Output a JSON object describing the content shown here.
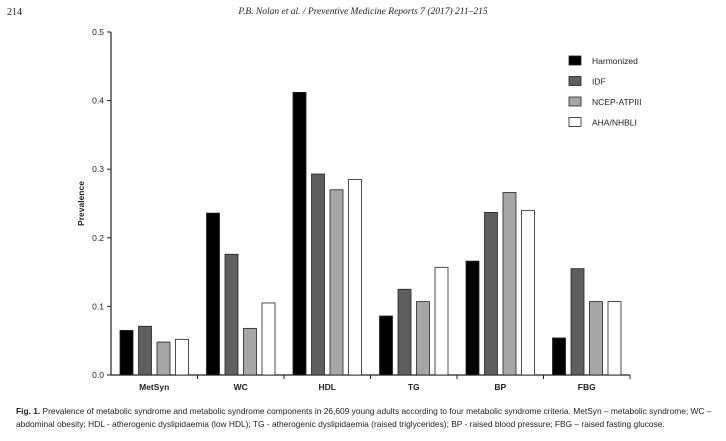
{
  "header": {
    "page_number": "214",
    "running_title": "P.B. Nolan et al. / Preventive Medicine Reports 7 (2017) 211–215"
  },
  "chart_data": {
    "type": "bar",
    "title": "",
    "xlabel": "",
    "ylabel": "Prevalence",
    "ylim": [
      0,
      0.5
    ],
    "yticks": [
      "0.0",
      "0.1",
      "0.2",
      "0.3",
      "0.4",
      "0.5"
    ],
    "categories": [
      "MetSyn",
      "WC",
      "HDL",
      "TG",
      "BP",
      "FBG"
    ],
    "legend_position": "top-right",
    "grid": false,
    "series": [
      {
        "name": "Harmonized",
        "color": "#000000",
        "values": [
          0.065,
          0.236,
          0.412,
          0.086,
          0.166,
          0.054
        ]
      },
      {
        "name": "IDF",
        "color": "#5f5f5f",
        "values": [
          0.071,
          0.176,
          0.293,
          0.125,
          0.237,
          0.155
        ]
      },
      {
        "name": "NCEP-ATPIII",
        "color": "#a6a6a6",
        "values": [
          0.048,
          0.068,
          0.27,
          0.107,
          0.266,
          0.107
        ]
      },
      {
        "name": "AHA/NHBLI",
        "color": "#ffffff",
        "values": [
          0.052,
          0.105,
          0.285,
          0.157,
          0.24,
          0.107
        ]
      }
    ]
  },
  "caption": {
    "label": "Fig. 1.",
    "text": "Prevalence of metabolic syndrome and metabolic syndrome components in 26,609 young adults according to four metabolic syndrome criteria. MetSyn – metabolic syndrome; WC – abdominal obesity; HDL - atherogenic dyslipidaemia (low HDL); TG - atherogenic dyslipidaemia (raised triglycerides); BP - raised blood pressure; FBG – raised fasting glucose."
  }
}
